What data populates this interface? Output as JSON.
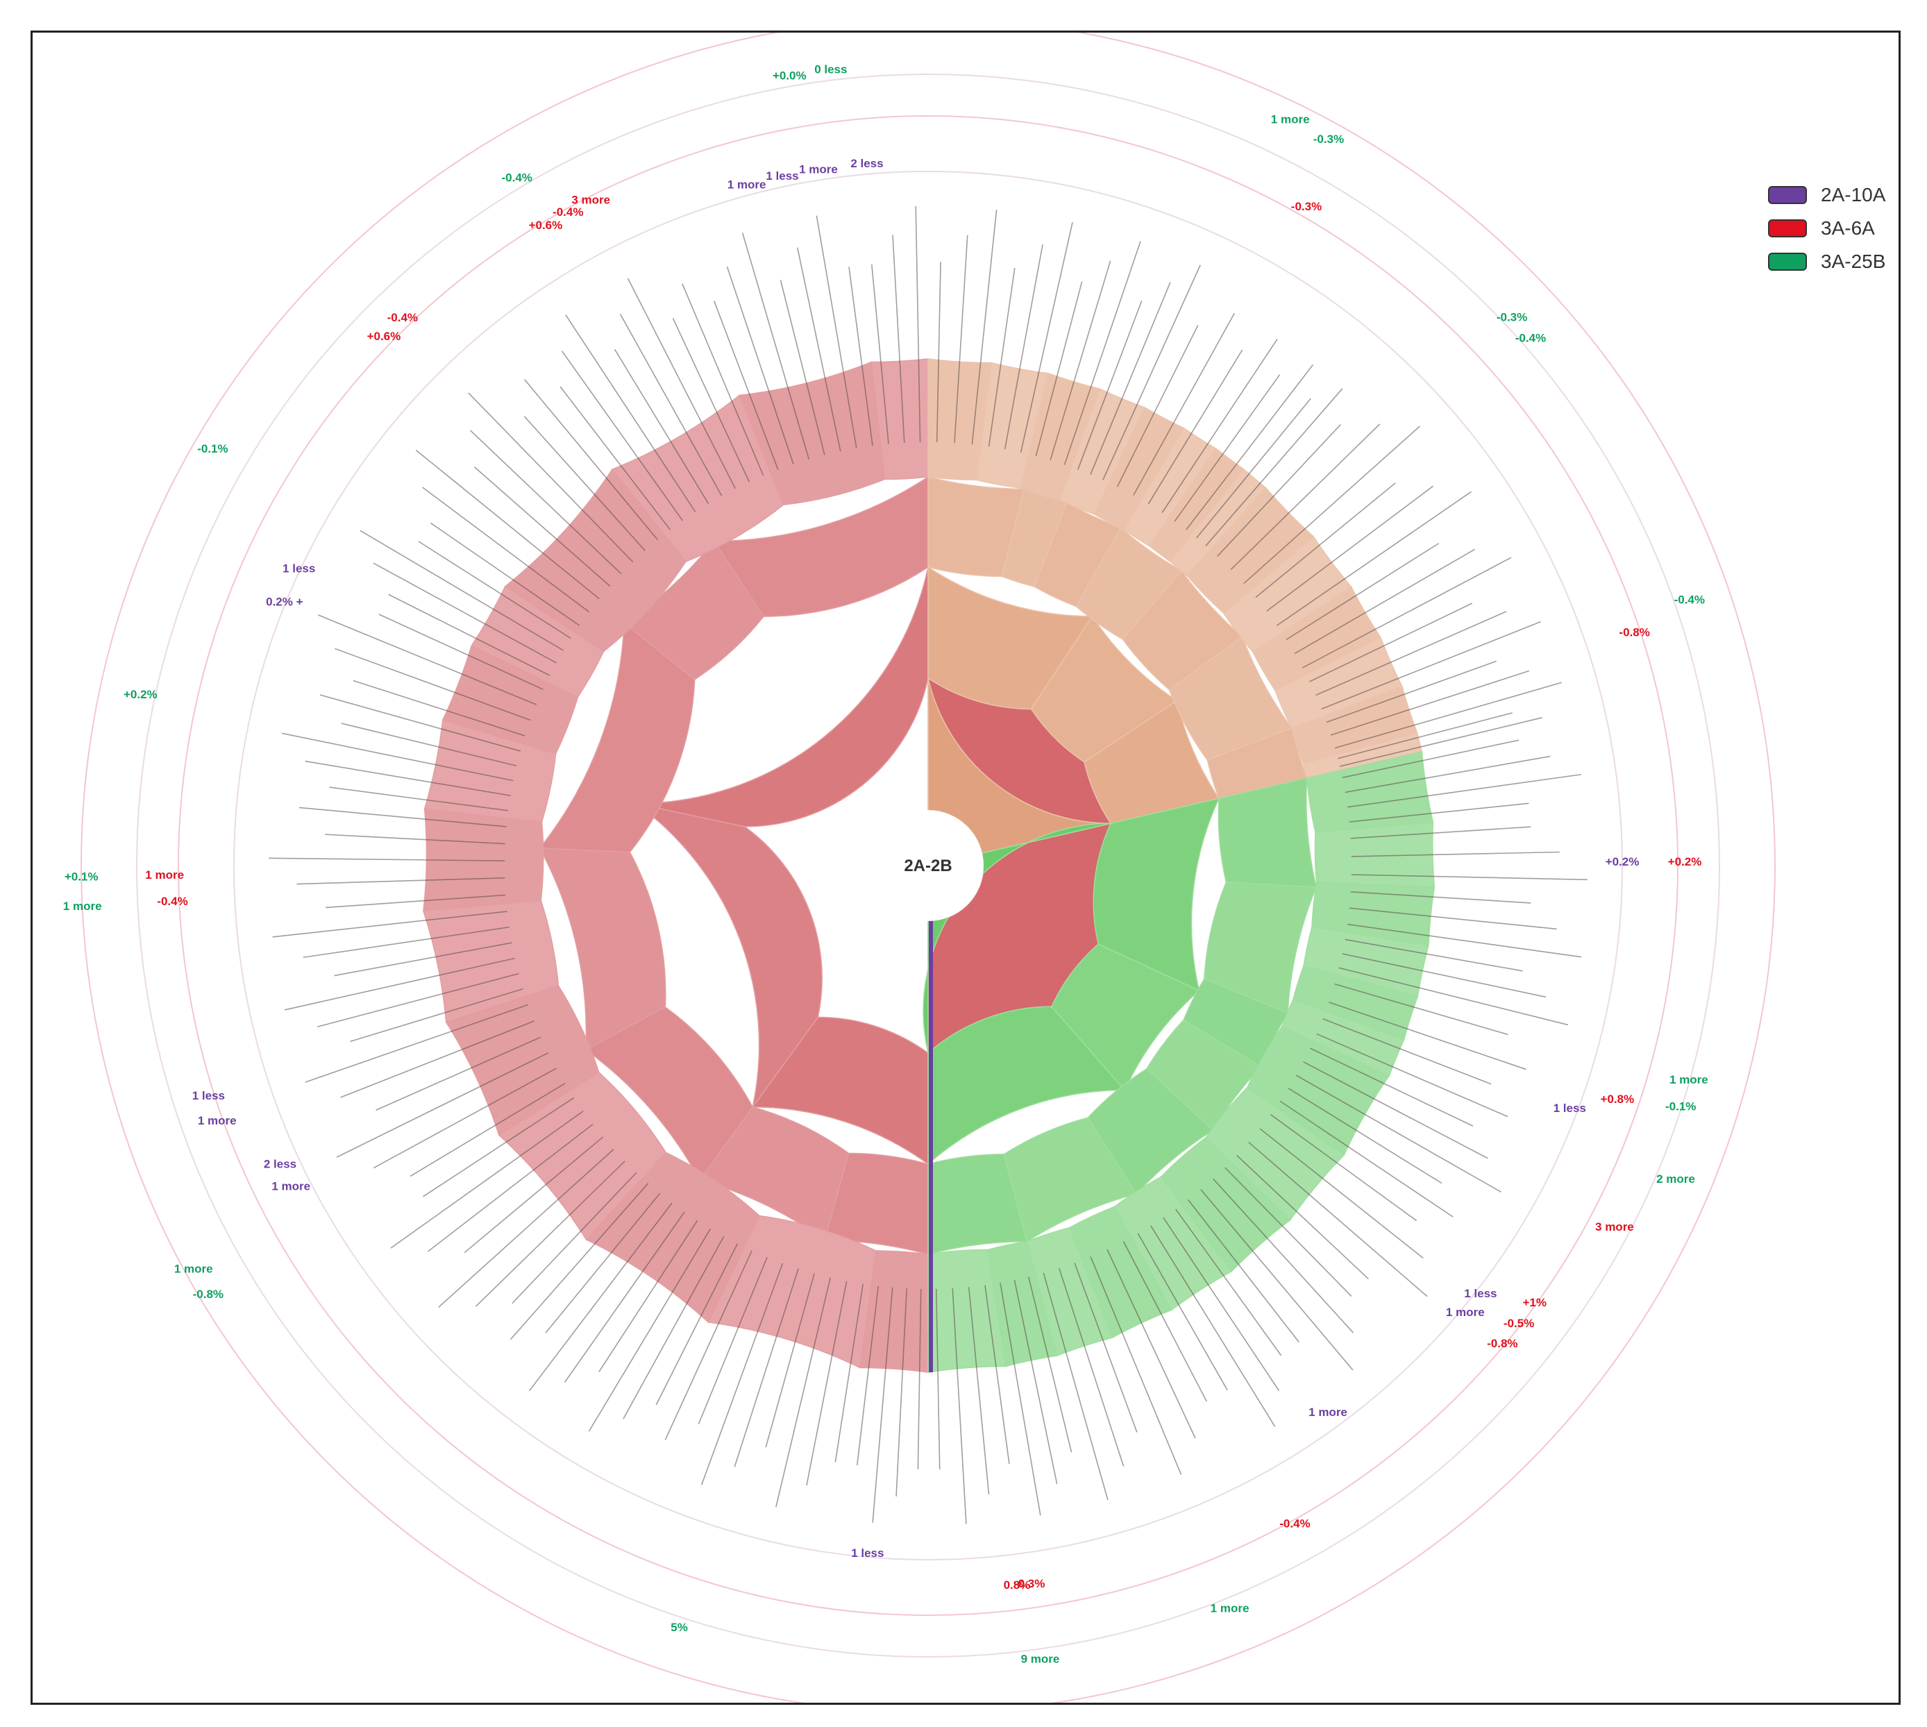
{
  "chart_data": {
    "type": "sunburst",
    "center_label": "2A-2B",
    "legend": [
      {
        "name": "2A-10A",
        "color": "#6b3fa0"
      },
      {
        "name": "3A-6A",
        "color": "#e0101e"
      },
      {
        "name": "3A-25B",
        "color": "#0fa060"
      }
    ],
    "sectors": [
      {
        "name": "red",
        "start": 0,
        "end": 180,
        "color": "#d4686d"
      },
      {
        "name": "orange",
        "start": 180,
        "end": 257,
        "color": "#e0a27e"
      },
      {
        "name": "green",
        "start": 257,
        "end": 360,
        "color": "#6ccc6c"
      }
    ],
    "annotations": [
      {
        "text": "2 less",
        "angle": 175,
        "r": 1010,
        "color": "purple"
      },
      {
        "text": "1 more",
        "angle": 171,
        "r": 1010,
        "color": "purple"
      },
      {
        "text": "1 less",
        "angle": 168,
        "r": 1010,
        "color": "purple"
      },
      {
        "text": "1 more",
        "angle": 165,
        "r": 1010,
        "color": "purple"
      },
      {
        "text": "0 less",
        "angle": 173,
        "r": 1150,
        "color": "green"
      },
      {
        "text": "+0.0%",
        "angle": 170,
        "r": 1150,
        "color": "green"
      },
      {
        "text": "3 more",
        "angle": 153,
        "r": 1070,
        "color": "red"
      },
      {
        "text": "-0.4%",
        "angle": 151,
        "r": 1070,
        "color": "red"
      },
      {
        "text": "+0.6%",
        "angle": 149,
        "r": 1070,
        "color": "red"
      },
      {
        "text": "-0.4%",
        "angle": 149,
        "r": 1150,
        "color": "green"
      },
      {
        "text": "-0.4%",
        "angle": 136,
        "r": 1090,
        "color": "red"
      },
      {
        "text": "+0.6%",
        "angle": 134,
        "r": 1090,
        "color": "red"
      },
      {
        "text": "-0.1%",
        "angle": 120,
        "r": 1190,
        "color": "green"
      },
      {
        "text": "1 less",
        "angle": 115,
        "r": 1000,
        "color": "purple"
      },
      {
        "text": "0.2% +",
        "angle": 112,
        "r": 1000,
        "color": "purple"
      },
      {
        "text": "+0.2%",
        "angle": 102,
        "r": 1160,
        "color": "green"
      },
      {
        "text": "+0.1%",
        "angle": 89,
        "r": 1220,
        "color": "green"
      },
      {
        "text": "1 more",
        "angle": 87,
        "r": 1220,
        "color": "green"
      },
      {
        "text": "1 more",
        "angle": 89,
        "r": 1100,
        "color": "red"
      },
      {
        "text": "-0.4%",
        "angle": 87,
        "r": 1090,
        "color": "red"
      },
      {
        "text": "1 less",
        "angle": 72,
        "r": 1090,
        "color": "purple"
      },
      {
        "text": "1 more",
        "angle": 70,
        "r": 1090,
        "color": "purple"
      },
      {
        "text": "2 less",
        "angle": 65,
        "r": 1030,
        "color": "purple"
      },
      {
        "text": "1 more",
        "angle": 63,
        "r": 1030,
        "color": "purple"
      },
      {
        "text": "1 more",
        "angle": 61,
        "r": 1210,
        "color": "green"
      },
      {
        "text": "-0.8%",
        "angle": 59,
        "r": 1210,
        "color": "green"
      },
      {
        "text": "1 less",
        "angle": 5,
        "r": 1000,
        "color": "purple"
      },
      {
        "text": "0.8%",
        "angle": 353,
        "r": 1050,
        "color": "red"
      },
      {
        "text": "-0.3%",
        "angle": 352,
        "r": 1050,
        "color": "red"
      },
      {
        "text": "9 more",
        "angle": 352,
        "r": 1160,
        "color": "green"
      },
      {
        "text": "5%",
        "angle": 18,
        "r": 1160,
        "color": "green"
      },
      {
        "text": "1 more",
        "angle": 338,
        "r": 1160,
        "color": "green"
      },
      {
        "text": "-0.4%",
        "angle": 331,
        "r": 1090,
        "color": "red"
      },
      {
        "text": "1 more",
        "angle": 324,
        "r": 980,
        "color": "purple"
      },
      {
        "text": "1 more",
        "angle": 310,
        "r": 1010,
        "color": "purple"
      },
      {
        "text": "1 less",
        "angle": 308,
        "r": 1010,
        "color": "purple"
      },
      {
        "text": "-0.8%",
        "angle": 310,
        "r": 1080,
        "color": "red"
      },
      {
        "text": "-0.5%",
        "angle": 308,
        "r": 1080,
        "color": "red"
      },
      {
        "text": "+1%",
        "angle": 306,
        "r": 1080,
        "color": "red"
      },
      {
        "text": "3 more",
        "angle": 298,
        "r": 1120,
        "color": "red"
      },
      {
        "text": "2 more",
        "angle": 293,
        "r": 1170,
        "color": "green"
      },
      {
        "text": "1 less",
        "angle": 291,
        "r": 990,
        "color": "purple"
      },
      {
        "text": "+0.8%",
        "angle": 289,
        "r": 1050,
        "color": "red"
      },
      {
        "text": "-0.1%",
        "angle": 288,
        "r": 1140,
        "color": "green"
      },
      {
        "text": "1 more",
        "angle": 286,
        "r": 1140,
        "color": "green"
      },
      {
        "text": "+0.2%",
        "angle": 270,
        "r": 1000,
        "color": "purple"
      },
      {
        "text": "+0.2%",
        "angle": 270,
        "r": 1090,
        "color": "red"
      },
      {
        "text": "-0.8%",
        "angle": 252,
        "r": 1070,
        "color": "red"
      },
      {
        "text": "-0.4%",
        "angle": 251,
        "r": 1160,
        "color": "green"
      },
      {
        "text": "-0.4%",
        "angle": 229,
        "r": 1150,
        "color": "green"
      },
      {
        "text": "-0.3%",
        "angle": 227,
        "r": 1150,
        "color": "green"
      },
      {
        "text": "-0.3%",
        "angle": 210,
        "r": 1090,
        "color": "red"
      },
      {
        "text": "-0.3%",
        "angle": 209,
        "r": 1190,
        "color": "green"
      },
      {
        "text": "1 more",
        "angle": 206,
        "r": 1190,
        "color": "green"
      }
    ]
  }
}
